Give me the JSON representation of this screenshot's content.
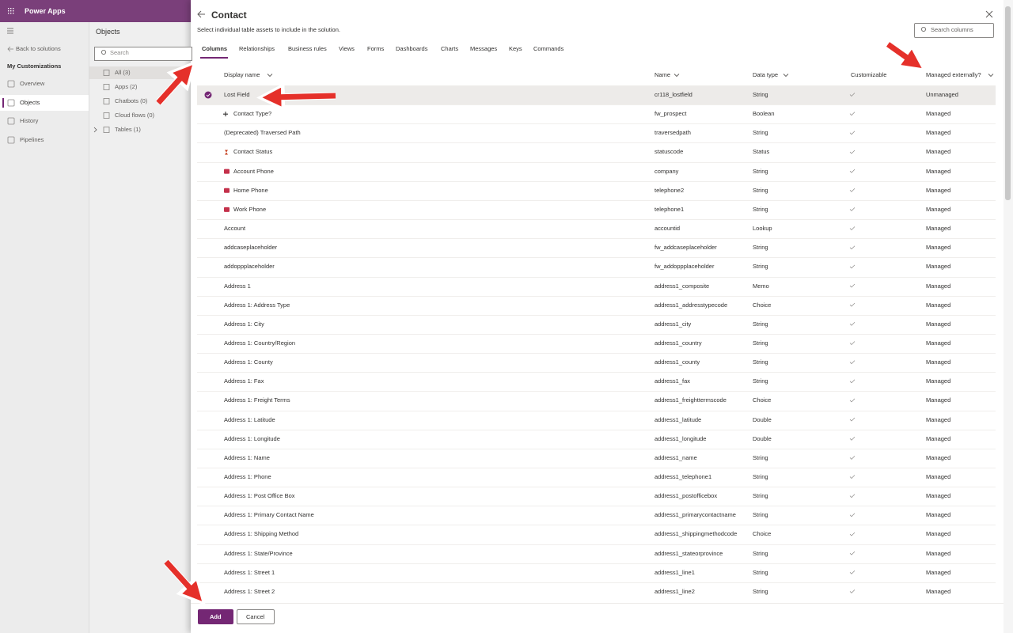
{
  "app_bar": {
    "title": "Power Apps"
  },
  "left_nav": {
    "back": "Back to solutions",
    "section": "My Customizations",
    "items": [
      "Overview",
      "Objects",
      "History",
      "Pipelines"
    ]
  },
  "objects_panel": {
    "title": "Objects",
    "search_placeholder": "Search",
    "items": [
      "All (3)",
      "Apps (2)",
      "Chatbots (0)",
      "Cloud flows (0)",
      "Tables (1)"
    ]
  },
  "dialog": {
    "title": "Contact",
    "subtitle": "Select individual table assets to include in the solution.",
    "search_placeholder": "Search columns",
    "tabs": [
      "Columns",
      "Relationships",
      "Business rules",
      "Views",
      "Forms",
      "Dashboards",
      "Charts",
      "Messages",
      "Keys",
      "Commands"
    ],
    "columns": [
      "Display name",
      "Name",
      "Data type",
      "Customizable",
      "Managed externally?"
    ],
    "rows": [
      [
        "Lost Field",
        "cr118_lostfield",
        "String",
        "Unmanaged"
      ],
      [
        "Contact Type?",
        "fw_prospect",
        "Boolean",
        "Managed"
      ],
      [
        "(Deprecated) Traversed Path",
        "traversedpath",
        "String",
        "Managed"
      ],
      [
        "Contact Status",
        "statuscode",
        "Status",
        "Managed"
      ],
      [
        "Account Phone",
        "company",
        "String",
        "Managed"
      ],
      [
        "Home Phone",
        "telephone2",
        "String",
        "Managed"
      ],
      [
        "Work Phone",
        "telephone1",
        "String",
        "Managed"
      ],
      [
        "Account",
        "accountid",
        "Lookup",
        "Managed"
      ],
      [
        "addcaseplaceholder",
        "fw_addcaseplaceholder",
        "String",
        "Managed"
      ],
      [
        "addoppplaceholder",
        "fw_addoppplaceholder",
        "String",
        "Managed"
      ],
      [
        "Address 1",
        "address1_composite",
        "Memo",
        "Managed"
      ],
      [
        "Address 1: Address Type",
        "address1_addresstypecode",
        "Choice",
        "Managed"
      ],
      [
        "Address 1: City",
        "address1_city",
        "String",
        "Managed"
      ],
      [
        "Address 1: Country/Region",
        "address1_country",
        "String",
        "Managed"
      ],
      [
        "Address 1: County",
        "address1_county",
        "String",
        "Managed"
      ],
      [
        "Address 1: Fax",
        "address1_fax",
        "String",
        "Managed"
      ],
      [
        "Address 1: Freight Terms",
        "address1_freighttermscode",
        "Choice",
        "Managed"
      ],
      [
        "Address 1: Latitude",
        "address1_latitude",
        "Double",
        "Managed"
      ],
      [
        "Address 1: Longitude",
        "address1_longitude",
        "Double",
        "Managed"
      ],
      [
        "Address 1: Name",
        "address1_name",
        "String",
        "Managed"
      ],
      [
        "Address 1: Phone",
        "address1_telephone1",
        "String",
        "Managed"
      ],
      [
        "Address 1: Post Office Box",
        "address1_postofficebox",
        "String",
        "Managed"
      ],
      [
        "Address 1: Primary Contact Name",
        "address1_primarycontactname",
        "String",
        "Managed"
      ],
      [
        "Address 1: Shipping Method",
        "address1_shippingmethodcode",
        "Choice",
        "Managed"
      ],
      [
        "Address 1: State/Province",
        "address1_stateorprovince",
        "String",
        "Managed"
      ],
      [
        "Address 1: Street 1",
        "address1_line1",
        "String",
        "Managed"
      ],
      [
        "Address 1: Street 2",
        "address1_line2",
        "String",
        "Managed"
      ]
    ],
    "buttons": {
      "primary": "Add",
      "secondary": "Cancel"
    }
  }
}
